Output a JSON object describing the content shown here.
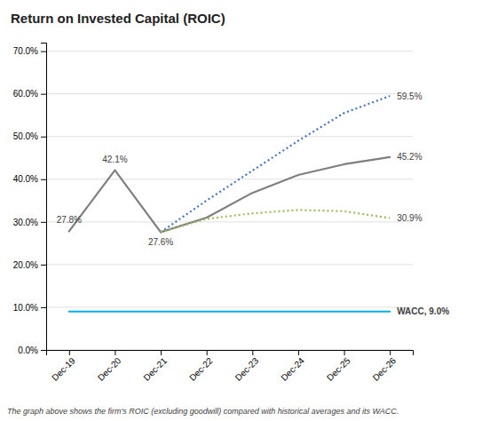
{
  "chart_data": {
    "type": "line",
    "title": "Return on Invested Capital (ROIC)",
    "footnote": "The graph above shows the firm's ROIC (excluding goodwill) compared with historical averages and its WACC.",
    "categories": [
      "Dec-19",
      "Dec-20",
      "Dec-21",
      "Dec-22",
      "Dec-23",
      "Dec-24",
      "Dec-25",
      "Dec-26"
    ],
    "series": [
      {
        "color": "#7F7F7F",
        "line_style": "solid",
        "values": [
          0.278,
          0.421,
          0.276,
          null,
          null,
          null,
          null,
          null
        ]
      },
      {
        "color": "#7F7F7F",
        "line_style": "solid",
        "values": [
          null,
          null,
          0.276,
          0.31,
          0.368,
          0.41,
          0.435,
          0.452
        ]
      },
      {
        "color": "#4472C4",
        "line_style": "dotted",
        "values": [
          null,
          null,
          0.276,
          0.35,
          0.42,
          0.49,
          0.555,
          0.595
        ]
      },
      {
        "color": "#9BBB59",
        "line_style": "dotted",
        "values": [
          null,
          null,
          0.276,
          0.307,
          0.32,
          0.328,
          0.325,
          0.309
        ]
      },
      {
        "color": "#00B0F0",
        "line_style": "solid",
        "values": [
          0.09,
          0.09,
          0.09,
          0.09,
          0.09,
          0.09,
          0.09,
          0.09
        ]
      }
    ],
    "annotations": [
      {
        "text": "27.8%",
        "x": "Dec-19",
        "y": 0.278
      },
      {
        "text": "42.1%",
        "x": "Dec-20",
        "y": 0.421
      },
      {
        "text": "27.6%",
        "x": "Dec-21",
        "y": 0.276
      },
      {
        "text": "59.5%",
        "x": "Dec-26",
        "y": 0.595
      },
      {
        "text": "45.2%",
        "x": "Dec-26",
        "y": 0.452
      },
      {
        "text": "30.9%",
        "x": "Dec-26",
        "y": 0.309
      },
      {
        "text": "WACC, 9.0%",
        "x": "Dec-26",
        "y": 0.09
      }
    ],
    "ylim": [
      0.0,
      0.72
    ],
    "yticks": [
      {
        "value": 0.0,
        "label": "0.0%"
      },
      {
        "value": 0.1,
        "label": "10.0%"
      },
      {
        "value": 0.2,
        "label": "20.0%"
      },
      {
        "value": 0.3,
        "label": "30.0%"
      },
      {
        "value": 0.4,
        "label": "40.0%"
      },
      {
        "value": 0.5,
        "label": "50.0%"
      },
      {
        "value": 0.6,
        "label": "60.0%"
      },
      {
        "value": 0.7,
        "label": "70.0%"
      }
    ],
    "grid": true
  }
}
